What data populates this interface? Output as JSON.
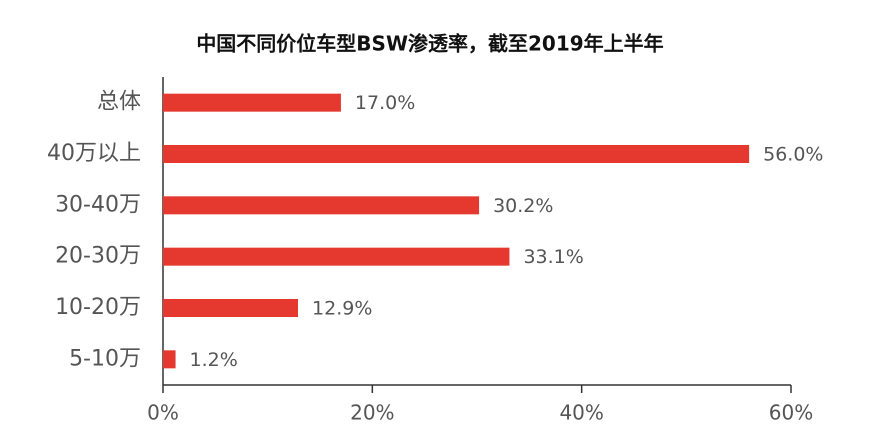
{
  "chart_data": {
    "type": "bar",
    "title": "中国不同价位车型BSW渗透率，截至2019年上半年",
    "categories": [
      "总体",
      "40万以上",
      "30-40万",
      "20-30万",
      "10-20万",
      "5-10万"
    ],
    "values": [
      17.0,
      56.0,
      30.2,
      33.1,
      12.9,
      1.2
    ],
    "value_labels": [
      "17.0%",
      "56.0%",
      "30.2%",
      "33.1%",
      "12.9%",
      "1.2%"
    ],
    "color": "#e5382e",
    "xlim": [
      0,
      60
    ],
    "xticks": [
      {
        "value": 0,
        "label": "0%"
      },
      {
        "value": 20,
        "label": "20%"
      },
      {
        "value": 40,
        "label": "40%"
      },
      {
        "value": 60,
        "label": "60%"
      }
    ]
  }
}
